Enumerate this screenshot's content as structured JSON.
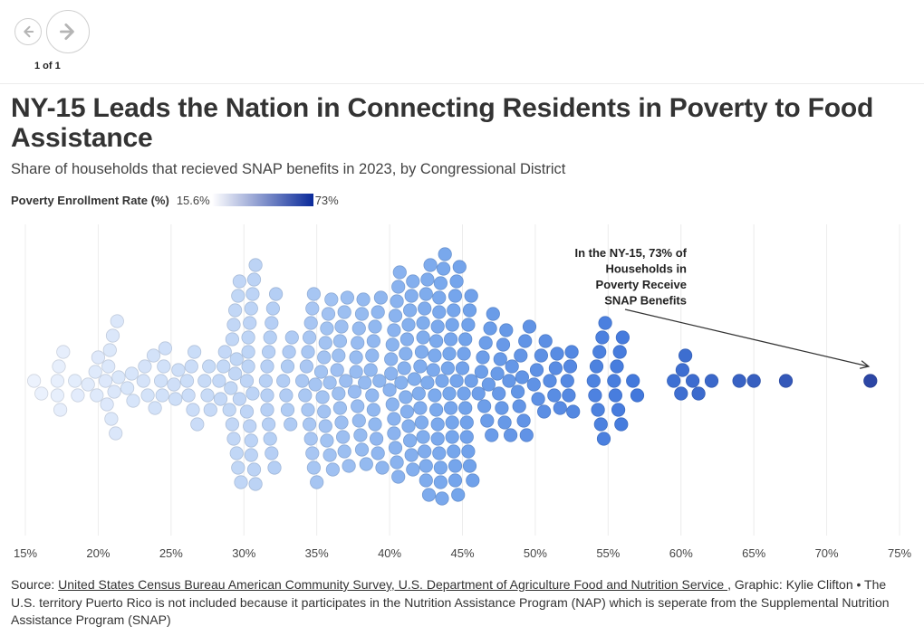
{
  "nav": {
    "page_counter": "1 of 1",
    "prev_icon": "arrow-left-icon",
    "next_icon": "arrow-right-icon"
  },
  "header": {
    "title": "NY-15 Leads the Nation in Connecting Residents in Poverty to Food Assistance",
    "subtitle": "Share of households that recieved SNAP benefits in 2023, by Congressional District"
  },
  "legend": {
    "title": "Poverty Enrollment Rate (%)",
    "min_label": "15.6%",
    "max_label": "73%",
    "color_low": "#ffffff",
    "color_high": "#0a2a9a"
  },
  "chart_data": {
    "type": "scatter",
    "subtype": "beeswarm",
    "title": "Share of households that recieved SNAP benefits in 2023, by Congressional District",
    "xlabel": "",
    "ylabel": "",
    "xlim": [
      15,
      75
    ],
    "x_ticks": [
      15,
      20,
      25,
      30,
      35,
      40,
      45,
      50,
      55,
      60,
      65,
      70,
      75
    ],
    "x_tick_labels": [
      "15%",
      "20%",
      "25%",
      "30%",
      "35%",
      "40%",
      "45%",
      "50%",
      "55%",
      "60%",
      "65%",
      "70%",
      "75%"
    ],
    "grid": true,
    "color_scale": {
      "min": 15.6,
      "max": 73
    },
    "values": [
      15.6,
      16.1,
      17.2,
      17.4,
      17.6,
      17.3,
      17.2,
      18.6,
      18.4,
      19.3,
      19.8,
      20.0,
      19.9,
      20.5,
      20.6,
      20.8,
      21.0,
      20.7,
      20.9,
      21.2,
      21.1,
      21.4,
      21.3,
      22.3,
      22.0,
      22.4,
      23.2,
      23.1,
      23.4,
      23.9,
      23.8,
      24.5,
      24.4,
      24.6,
      24.3,
      25.2,
      25.3,
      25.5,
      26.1,
      26.4,
      26.2,
      26.6,
      26.5,
      26.8,
      27.3,
      27.7,
      27.5,
      27.6,
      28.3,
      28.6,
      28.4,
      28.7,
      29.0,
      29.1,
      29.2,
      29.3,
      29.4,
      29.5,
      29.6,
      29.7,
      29.8,
      29.3,
      29.4,
      29.6,
      29.5,
      29.2,
      29.7,
      30.2,
      30.3,
      30.4,
      30.5,
      30.6,
      30.7,
      30.8,
      30.2,
      30.3,
      30.4,
      30.5,
      30.6,
      30.7,
      30.3,
      30.5,
      30.8,
      31.5,
      31.6,
      31.7,
      31.8,
      31.9,
      32.0,
      31.6,
      31.7,
      31.9,
      32.1,
      31.8,
      31.6,
      32.2,
      32.7,
      33.0,
      33.2,
      33.1,
      32.9,
      33.0,
      33.3,
      34.0,
      34.2,
      34.3,
      34.4,
      34.5,
      34.6,
      34.7,
      34.8,
      34.9,
      35.0,
      34.4,
      34.6,
      34.8,
      34.5,
      34.7,
      35.3,
      35.4,
      35.5,
      35.6,
      35.7,
      35.8,
      35.9,
      36.0,
      35.5,
      35.7,
      35.9,
      35.6,
      36.1,
      36.4,
      36.5,
      36.6,
      36.7,
      36.8,
      36.9,
      37.0,
      37.1,
      36.5,
      36.7,
      36.9,
      36.6,
      37.2,
      37.6,
      37.7,
      37.8,
      37.9,
      38.0,
      38.1,
      38.2,
      38.3,
      37.7,
      37.9,
      38.1,
      37.8,
      38.4,
      38.7,
      38.8,
      38.9,
      39.0,
      39.1,
      39.2,
      39.3,
      39.4,
      38.8,
      39.0,
      39.2,
      38.9,
      39.5,
      40.0,
      40.1,
      40.2,
      40.3,
      40.4,
      40.5,
      40.6,
      40.7,
      40.8,
      40.1,
      40.3,
      40.5,
      40.2,
      40.4,
      40.6,
      40.3,
      41.0,
      41.1,
      41.2,
      41.3,
      41.4,
      41.5,
      41.6,
      41.7,
      41.1,
      41.3,
      41.5,
      41.2,
      41.4,
      41.6,
      42.0,
      42.1,
      42.2,
      42.3,
      42.4,
      42.5,
      42.6,
      42.7,
      42.8,
      42.1,
      42.3,
      42.5,
      42.2,
      42.4,
      42.6,
      42.3,
      42.5,
      43.0,
      43.1,
      43.2,
      43.3,
      43.4,
      43.5,
      43.6,
      43.7,
      43.8,
      43.1,
      43.3,
      43.5,
      43.2,
      43.4,
      43.6,
      43.3,
      43.5,
      43.4,
      44.0,
      44.1,
      44.2,
      44.3,
      44.4,
      44.5,
      44.6,
      44.7,
      44.8,
      44.1,
      44.3,
      44.5,
      44.2,
      44.4,
      44.6,
      44.3,
      44.5,
      45.0,
      45.1,
      45.2,
      45.3,
      45.4,
      45.5,
      45.6,
      45.7,
      45.1,
      45.3,
      45.5,
      45.2,
      45.4,
      45.6,
      46.1,
      46.3,
      46.5,
      46.7,
      46.9,
      47.1,
      46.4,
      46.8,
      46.6,
      47.0,
      47.4,
      47.6,
      47.8,
      48.0,
      48.2,
      48.4,
      47.5,
      47.9,
      48.3,
      47.7,
      48.8,
      49.0,
      49.2,
      49.4,
      49.6,
      48.9,
      49.3,
      49.1,
      49.9,
      50.1,
      50.4,
      50.7,
      50.2,
      50.6,
      51.0,
      51.3,
      51.5,
      51.7,
      51.4,
      52.2,
      52.3,
      52.4,
      52.5,
      52.6,
      54.0,
      54.1,
      54.2,
      54.3,
      54.4,
      54.5,
      54.6,
      54.7,
      54.8,
      55.4,
      55.6,
      55.5,
      55.7,
      55.8,
      56.0,
      55.9,
      56.7,
      57.0,
      59.5,
      60.0,
      60.1,
      60.3,
      60.8,
      61.2,
      62.1,
      64.0,
      65.0,
      67.2,
      73.0
    ],
    "annotation": {
      "lines": [
        "In the NY-15, 73% of",
        "Households in",
        "Poverty Receive",
        "SNAP Benefits"
      ],
      "target_value": 73.0
    }
  },
  "footer": {
    "source_label": "Source: ",
    "source_link": "United States Census Bureau American Community Survey, U.S. Department of Agriculture Food and Nutrition Service ",
    "source_rest": ", Graphic: Kylie Clifton • The U.S. territory Puerto Rico is not included because it participates in the Nutrition Assistance Program (NAP) which is seperate from the Supplemental Nutrition Assistance Program (SNAP)"
  }
}
